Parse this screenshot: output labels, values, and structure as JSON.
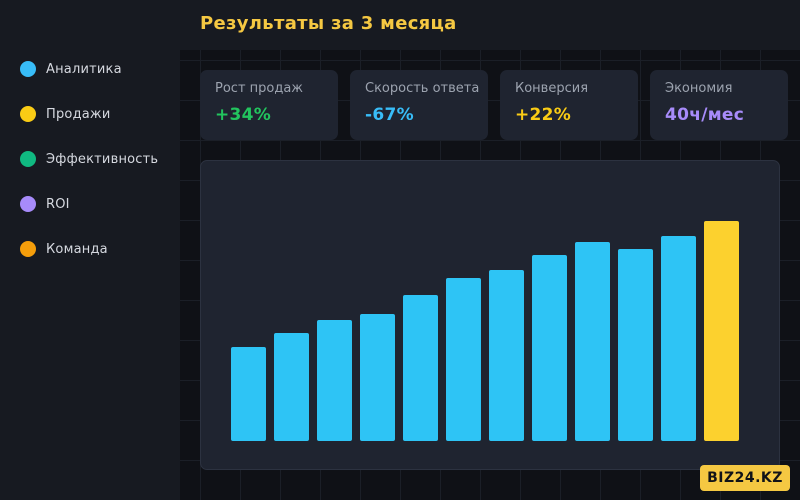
{
  "header": {
    "title": "Результаты за 3 месяца"
  },
  "sidebar": {
    "items": [
      {
        "label": "Аналитика",
        "color": "#38bdf8"
      },
      {
        "label": "Продажи",
        "color": "#facc15"
      },
      {
        "label": "Эффективность",
        "color": "#10b981"
      },
      {
        "label": "ROI",
        "color": "#a78bfa"
      },
      {
        "label": "Команда",
        "color": "#f59e0b"
      }
    ]
  },
  "metrics": [
    {
      "label": "Рост продаж",
      "value": "+34%",
      "color": "#22c55e"
    },
    {
      "label": "Скорость ответа",
      "value": "-67%",
      "color": "#38bdf8"
    },
    {
      "label": "Конверсия",
      "value": "+22%",
      "color": "#facc15"
    },
    {
      "label": "Экономия",
      "value": "40ч/мес",
      "color": "#a78bfa"
    }
  ],
  "chart_data": {
    "type": "bar",
    "values": [
      94,
      108,
      121,
      127,
      146,
      163,
      171,
      186,
      199,
      192,
      205,
      220
    ],
    "ylim": [
      0,
      220
    ],
    "bar_color": "#2ec4f5",
    "highlight_color": "#fcd12e",
    "highlight_index": 11
  },
  "brand": {
    "label": "BIZ24.KZ"
  }
}
